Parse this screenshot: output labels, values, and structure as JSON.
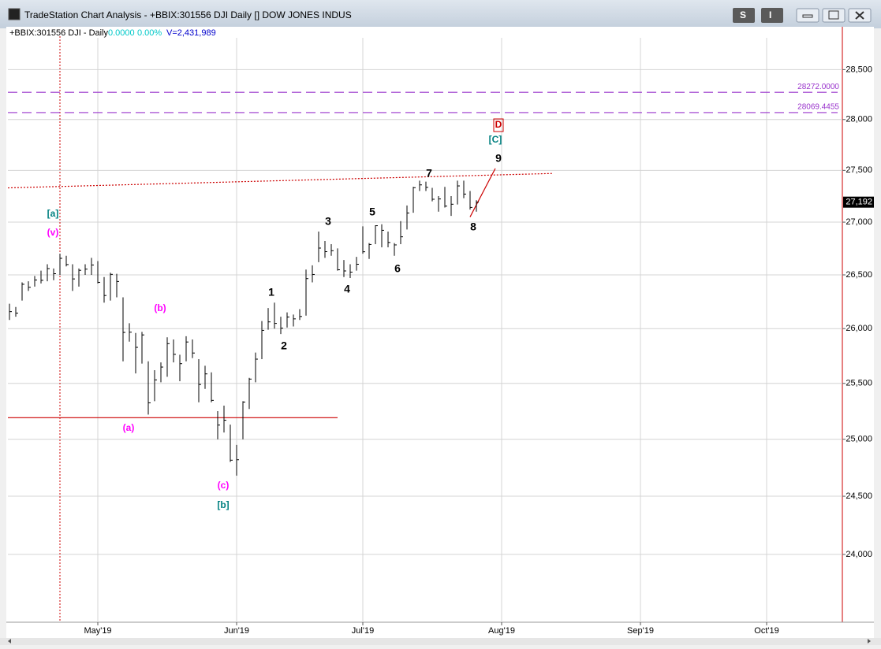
{
  "window": {
    "title": "TradeStation Chart Analysis - +BBIX:301556 DJI Daily [] DOW JONES INDUS",
    "buttons": [
      "S",
      "I"
    ]
  },
  "chart_data": {
    "type": "ohlc",
    "info": {
      "symbol": "+BBIX:301556 DJI - Daily",
      "change": "0.0000",
      "change_pct": "0.00%",
      "volume": "V=2,431,989"
    },
    "high": [
      26230,
      26200,
      26430,
      26440,
      26490,
      26540,
      26600,
      26560,
      26700,
      26680,
      26600,
      26560,
      26600,
      26660,
      26630,
      26480,
      26520,
      26510,
      26290,
      26050,
      25960,
      25970,
      25700,
      25620,
      25690,
      25920,
      25900,
      25760,
      25930,
      25900,
      25720,
      25660,
      25600,
      25250,
      25300,
      25130,
      24950,
      25340,
      25550,
      25780,
      26070,
      26190,
      26240,
      26110,
      26150,
      26130,
      26180,
      26550,
      26590,
      26910,
      26820,
      26790,
      26750,
      26640,
      26600,
      26670,
      26960,
      26800,
      26970,
      26980,
      26910,
      26800,
      27010,
      27160,
      27340,
      27400,
      27390,
      27330,
      27250,
      27340,
      27250,
      27400,
      27400,
      27300,
      27210
    ],
    "low": [
      26080,
      26110,
      26260,
      26350,
      26390,
      26420,
      26440,
      26450,
      26500,
      26580,
      26350,
      26390,
      26500,
      26500,
      26420,
      26240,
      26260,
      26290,
      25700,
      25880,
      25590,
      25680,
      25220,
      25340,
      25510,
      25560,
      25690,
      25520,
      25700,
      25730,
      25330,
      25450,
      25330,
      25000,
      25060,
      24800,
      24680,
      25000,
      25270,
      25510,
      25720,
      25990,
      26000,
      25950,
      26010,
      26020,
      26080,
      26120,
      26430,
      26620,
      26660,
      26680,
      26540,
      26480,
      26470,
      26540,
      26700,
      26650,
      26790,
      26760,
      26760,
      26680,
      26790,
      26930,
      27090,
      27300,
      27300,
      27200,
      27100,
      27140,
      27060,
      27170,
      27230,
      27120,
      27100
    ],
    "close": [
      26157,
      26143,
      26412,
      26384,
      26452,
      26449,
      26559,
      26511,
      26656,
      26597,
      26462,
      26543,
      26554,
      26593,
      26430,
      26307,
      26505,
      26438,
      25965,
      25967,
      25828,
      25942,
      25325,
      25532,
      25648,
      25862,
      25764,
      25679,
      25877,
      25776,
      25490,
      25586,
      25347,
      25126,
      25169,
      24815,
      24819,
      25332,
      25539,
      25720,
      25984,
      26062,
      26048,
      26004,
      26107,
      26090,
      26112,
      26465,
      26504,
      26753,
      26719,
      26728,
      26548,
      26537,
      26526,
      26600,
      26718,
      26787,
      26966,
      26922,
      26806,
      26783,
      26860,
      27088,
      27332,
      27359,
      27335,
      27220,
      27223,
      27154,
      27172,
      27349,
      27270,
      27141,
      27192
    ],
    "color": "#000000",
    "last_label": "27,192",
    "xlim": [
      -0.25,
      132
    ],
    "xticks": [
      {
        "value": 14,
        "label": "May'19"
      },
      {
        "value": 36,
        "label": "Jun'19"
      },
      {
        "value": 56,
        "label": "Jul'19"
      },
      {
        "value": 78,
        "label": "Aug'19"
      },
      {
        "value": 100,
        "label": "Sep'19"
      },
      {
        "value": 120,
        "label": "Oct'19"
      }
    ],
    "ylim": [
      23430,
      28920
    ],
    "yticks": [
      {
        "value": 24000,
        "label": "24,000"
      },
      {
        "value": 24500,
        "label": "24,500"
      },
      {
        "value": 25000,
        "label": "25,000"
      },
      {
        "value": 25500,
        "label": "25,500"
      },
      {
        "value": 26000,
        "label": "26,000"
      },
      {
        "value": 26500,
        "label": "26,500"
      },
      {
        "value": 27000,
        "label": "27,000"
      },
      {
        "value": 27500,
        "label": "27,500"
      },
      {
        "value": 28000,
        "label": "28,000"
      },
      {
        "value": 28500,
        "label": "28,500"
      }
    ],
    "log_scale": true,
    "grid": true,
    "price_lines": [
      {
        "value": 28272,
        "label": "28272.0000"
      },
      {
        "value": 28069.4455,
        "label": "28069.4455"
      }
    ],
    "price_line_color": "#9933cc",
    "trendline": {
      "x": [
        -0.25,
        86
      ],
      "y": [
        27330,
        27470
      ],
      "color": "#cc0000"
    },
    "support_line": {
      "x": [
        -0.25,
        52
      ],
      "y": [
        25192,
        25192
      ],
      "color": "#cc0000"
    },
    "projection": {
      "x": [
        73,
        77
      ],
      "y": [
        27050,
        27519
      ],
      "color": "#cc0000"
    },
    "cursor_x": 8,
    "wave_labels": [
      {
        "text": "[a]",
        "color": "#008080"
      },
      {
        "text": "(v)",
        "color": "#ff00ff"
      },
      {
        "text": "(b)",
        "color": "#ff00ff"
      },
      {
        "text": "(a)",
        "color": "#ff00ff"
      },
      {
        "text": "(c)",
        "color": "#ff00ff"
      },
      {
        "text": "[b]",
        "color": "#008080"
      },
      {
        "text": "1",
        "color": "#000000"
      },
      {
        "text": "2",
        "color": "#000000"
      },
      {
        "text": "3",
        "color": "#000000"
      },
      {
        "text": "4",
        "color": "#000000"
      },
      {
        "text": "5",
        "color": "#000000"
      },
      {
        "text": "6",
        "color": "#000000"
      },
      {
        "text": "7",
        "color": "#000000"
      },
      {
        "text": "8",
        "color": "#000000"
      },
      {
        "text": "9",
        "color": "#000000"
      },
      {
        "text": "[C]",
        "color": "#008080"
      },
      {
        "text": "D",
        "color": "#cc0000"
      }
    ]
  }
}
